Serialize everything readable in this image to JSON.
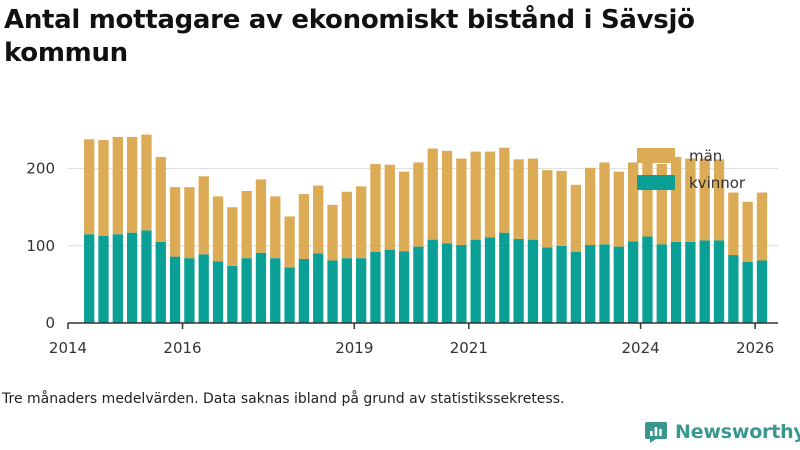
{
  "title": "Antal mottagare av ekonomiskt bistånd i Sävsjö kommun",
  "footnote": "Tre månaders medelvärden. Data saknas ibland på grund av statistikssekretess.",
  "brand": {
    "name": "Newsworthy",
    "icon": "newsworthy-logo-icon",
    "color": "#39978f"
  },
  "colors": {
    "kvinnor": "#0aa095",
    "man": "#dcab56",
    "axis": "#333333",
    "grid": "#dddddd"
  },
  "chart_data": {
    "type": "bar",
    "stacked": true,
    "title": "Antal mottagare av ekonomiskt bistånd i Sävsjö kommun",
    "xlabel": "",
    "ylabel": "",
    "ylim": [
      0,
      250
    ],
    "xlim": [
      2014.0,
      2026.4
    ],
    "grid": true,
    "legend_position": "top-right",
    "y_ticks": [
      0,
      100,
      200
    ],
    "x_ticks": [
      2014,
      2016,
      2019,
      2021,
      2024,
      2026
    ],
    "x": [
      2014.37,
      2014.62,
      2014.87,
      2015.12,
      2015.37,
      2015.62,
      2015.87,
      2016.12,
      2016.37,
      2016.62,
      2016.87,
      2017.12,
      2017.37,
      2017.62,
      2017.87,
      2018.12,
      2018.37,
      2018.62,
      2018.87,
      2019.12,
      2019.37,
      2019.62,
      2019.87,
      2020.12,
      2020.37,
      2020.62,
      2020.87,
      2021.12,
      2021.37,
      2021.62,
      2021.87,
      2022.12,
      2022.37,
      2022.62,
      2022.87,
      2023.12,
      2023.37,
      2023.62,
      2023.87,
      2024.12,
      2024.37,
      2024.62,
      2024.87,
      2025.12,
      2025.37,
      2025.62,
      2025.87,
      2026.12
    ],
    "series": [
      {
        "name": "kvinnor",
        "color": "#0aa095",
        "values": [
          115,
          113,
          115,
          117,
          120,
          105,
          86,
          84,
          89,
          80,
          74,
          84,
          91,
          84,
          72,
          83,
          90,
          81,
          84,
          84,
          92,
          95,
          93,
          99,
          108,
          103,
          101,
          108,
          111,
          117,
          109,
          108,
          98,
          100,
          92,
          101,
          102,
          99,
          106,
          112,
          102,
          105,
          105,
          107,
          107,
          88,
          79,
          81
        ]
      },
      {
        "name": "män",
        "color": "#dcab56",
        "values": [
          123,
          124,
          126,
          124,
          124,
          110,
          90,
          92,
          101,
          84,
          76,
          87,
          95,
          80,
          66,
          84,
          88,
          72,
          86,
          93,
          114,
          110,
          103,
          109,
          118,
          120,
          112,
          114,
          111,
          110,
          103,
          105,
          100,
          97,
          87,
          100,
          106,
          97,
          102,
          105,
          104,
          110,
          108,
          106,
          105,
          81,
          78,
          88
        ]
      }
    ]
  }
}
